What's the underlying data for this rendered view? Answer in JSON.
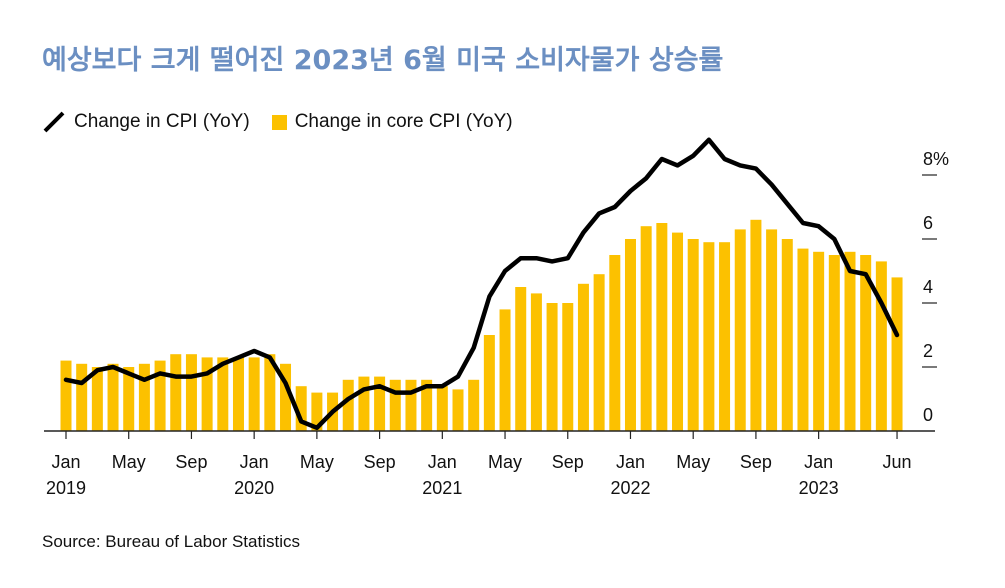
{
  "title": "예상보다 크게 떨어진 2023년 6월 미국 소비자물가 상승률",
  "legend": {
    "line_label": "Change in CPI (YoY)",
    "bar_label": "Change in core CPI (YoY)"
  },
  "source": "Source: Bureau of Labor Statistics",
  "colors": {
    "bar": "#fcc100",
    "line": "#000000",
    "title": "#6b8fc2"
  },
  "chart_data": {
    "type": "bar+line",
    "x": [
      "2019-01",
      "2019-02",
      "2019-03",
      "2019-04",
      "2019-05",
      "2019-06",
      "2019-07",
      "2019-08",
      "2019-09",
      "2019-10",
      "2019-11",
      "2019-12",
      "2020-01",
      "2020-02",
      "2020-03",
      "2020-04",
      "2020-05",
      "2020-06",
      "2020-07",
      "2020-08",
      "2020-09",
      "2020-10",
      "2020-11",
      "2020-12",
      "2021-01",
      "2021-02",
      "2021-03",
      "2021-04",
      "2021-05",
      "2021-06",
      "2021-07",
      "2021-08",
      "2021-09",
      "2021-10",
      "2021-11",
      "2021-12",
      "2022-01",
      "2022-02",
      "2022-03",
      "2022-04",
      "2022-05",
      "2022-06",
      "2022-07",
      "2022-08",
      "2022-09",
      "2022-10",
      "2022-11",
      "2022-12",
      "2023-01",
      "2023-02",
      "2023-03",
      "2023-04",
      "2023-05",
      "2023-06"
    ],
    "series": [
      {
        "name": "Change in core CPI (YoY)",
        "type": "bar",
        "values": [
          2.2,
          2.1,
          2.0,
          2.1,
          2.0,
          2.1,
          2.2,
          2.4,
          2.4,
          2.3,
          2.3,
          2.3,
          2.3,
          2.4,
          2.1,
          1.4,
          1.2,
          1.2,
          1.6,
          1.7,
          1.7,
          1.6,
          1.6,
          1.6,
          1.4,
          1.3,
          1.6,
          3.0,
          3.8,
          4.5,
          4.3,
          4.0,
          4.0,
          4.6,
          4.9,
          5.5,
          6.0,
          6.4,
          6.5,
          6.2,
          6.0,
          5.9,
          5.9,
          6.3,
          6.6,
          6.3,
          6.0,
          5.7,
          5.6,
          5.5,
          5.6,
          5.5,
          5.3,
          4.8
        ]
      },
      {
        "name": "Change in CPI (YoY)",
        "type": "line",
        "values": [
          1.6,
          1.5,
          1.9,
          2.0,
          1.8,
          1.6,
          1.8,
          1.7,
          1.7,
          1.8,
          2.1,
          2.3,
          2.5,
          2.3,
          1.5,
          0.3,
          0.1,
          0.6,
          1.0,
          1.3,
          1.4,
          1.2,
          1.2,
          1.4,
          1.4,
          1.7,
          2.6,
          4.2,
          5.0,
          5.4,
          5.4,
          5.3,
          5.4,
          6.2,
          6.8,
          7.0,
          7.5,
          7.9,
          8.5,
          8.3,
          8.6,
          9.1,
          8.5,
          8.3,
          8.2,
          7.7,
          7.1,
          6.5,
          6.4,
          6.0,
          5.0,
          4.9,
          4.0,
          3.0
        ]
      }
    ],
    "y_ticks": [
      "0",
      "2",
      "4",
      "6",
      "8%"
    ],
    "ylim": [
      0,
      9.5
    ],
    "x_tick_labels": [
      {
        "month": "Jan",
        "year": "2019",
        "index": 0
      },
      {
        "month": "May",
        "year": "",
        "index": 4
      },
      {
        "month": "Sep",
        "year": "",
        "index": 8
      },
      {
        "month": "Jan",
        "year": "2020",
        "index": 12
      },
      {
        "month": "May",
        "year": "",
        "index": 16
      },
      {
        "month": "Sep",
        "year": "",
        "index": 20
      },
      {
        "month": "Jan",
        "year": "2021",
        "index": 24
      },
      {
        "month": "May",
        "year": "",
        "index": 28
      },
      {
        "month": "Sep",
        "year": "",
        "index": 32
      },
      {
        "month": "Jan",
        "year": "2022",
        "index": 36
      },
      {
        "month": "May",
        "year": "",
        "index": 40
      },
      {
        "month": "Sep",
        "year": "",
        "index": 44
      },
      {
        "month": "Jan",
        "year": "2023",
        "index": 48
      },
      {
        "month": "Jun",
        "year": "",
        "index": 53
      }
    ],
    "legend_position": "top-left",
    "grid": false
  }
}
